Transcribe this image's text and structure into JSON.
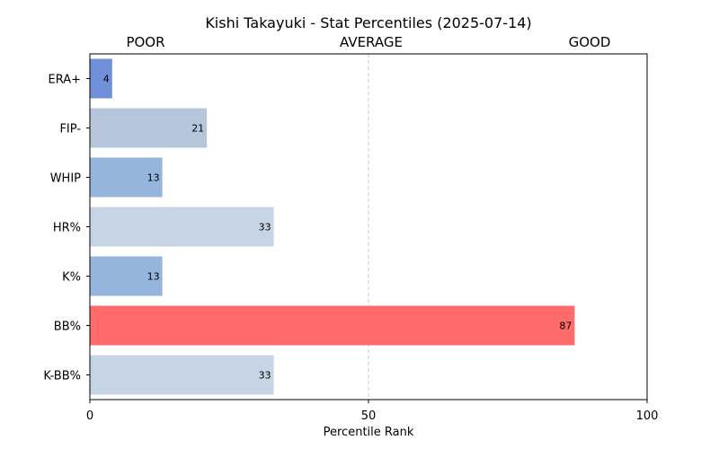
{
  "chart_data": {
    "type": "bar",
    "orientation": "horizontal",
    "title": "Kishi Takayuki - Stat Percentiles (2025-07-14)",
    "zone_labels": [
      "POOR",
      "AVERAGE",
      "GOOD"
    ],
    "xlabel": "Percentile Rank",
    "ylabel": "",
    "xlim": [
      0,
      100
    ],
    "xticks": [
      0,
      50,
      100
    ],
    "reference_line": 50,
    "grid": false,
    "categories": [
      "ERA+",
      "FIP-",
      "WHIP",
      "HR%",
      "K%",
      "BB%",
      "K-BB%"
    ],
    "values": [
      4,
      21,
      13,
      33,
      13,
      87,
      33
    ],
    "bar_colors": [
      "#7091d9",
      "#b6c6da",
      "#95b5dc",
      "#c7d4e6",
      "#95b5dc",
      "#ff6b6b",
      "#c7d4e6"
    ]
  }
}
